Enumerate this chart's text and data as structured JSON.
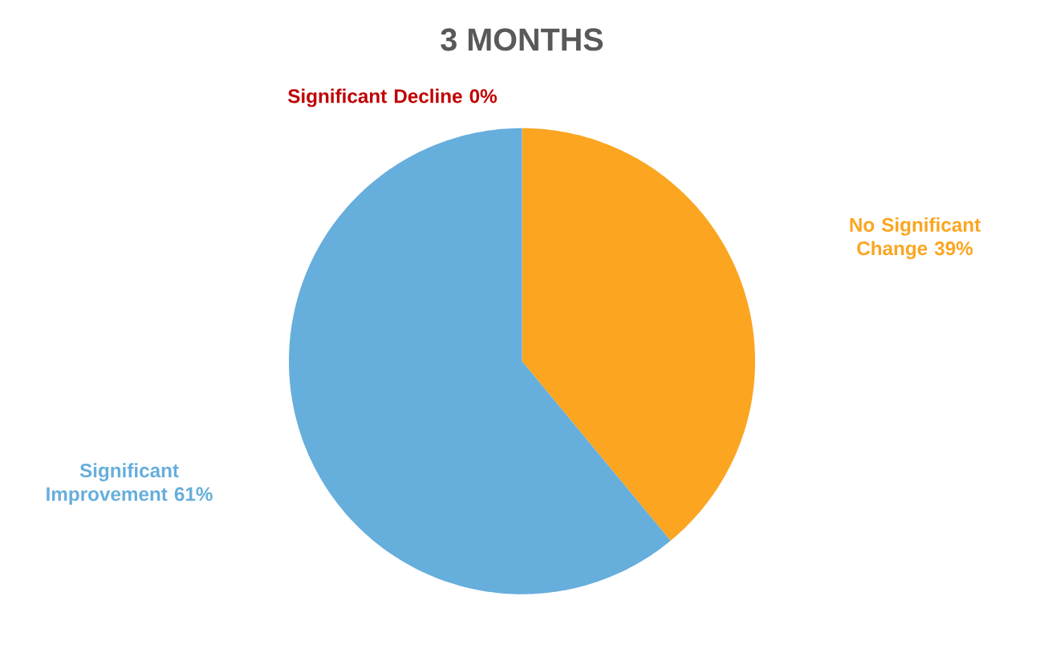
{
  "chart_data": {
    "type": "pie",
    "title": "3 MONTHS",
    "categories": [
      "No Significant Change",
      "Significant Improvement",
      "Significant Decline"
    ],
    "values": [
      39,
      61,
      0
    ],
    "colors": [
      "#fba520",
      "#66aedc",
      "#c00000"
    ],
    "value_labels": [
      "39%",
      "61%",
      "0%"
    ]
  }
}
